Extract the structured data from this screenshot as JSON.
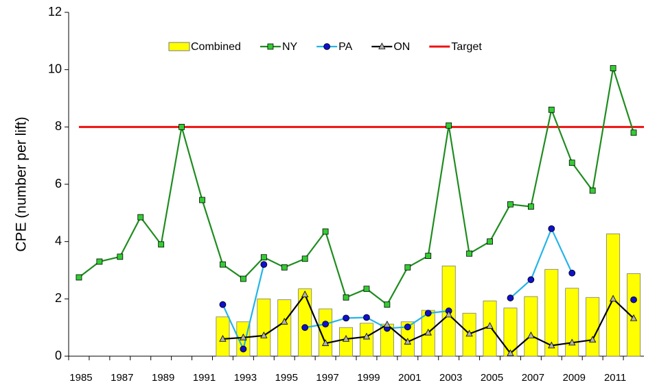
{
  "chart_data": {
    "type": "combo",
    "y_label": "CPE (number per lift)",
    "categories": [
      "1985",
      null,
      "1987",
      null,
      "1989",
      null,
      "1991",
      null,
      "1993",
      null,
      "1995",
      null,
      "1997",
      null,
      "1999",
      null,
      "2001",
      null,
      "2003",
      null,
      "2005",
      null,
      "2007",
      null,
      "2009",
      null,
      "2011",
      null
    ],
    "ylim": [
      0,
      12
    ],
    "yticks": [
      0,
      2,
      4,
      6,
      8,
      10,
      12
    ],
    "series": [
      {
        "name": "Combined",
        "kind": "bar",
        "color": "#ffff00",
        "values": [
          null,
          null,
          null,
          null,
          null,
          null,
          null,
          1.37,
          1.2,
          2.0,
          1.97,
          2.35,
          1.65,
          1.0,
          1.15,
          1.12,
          1.2,
          1.6,
          3.15,
          1.5,
          1.93,
          1.68,
          2.08,
          3.03,
          2.37,
          2.05,
          4.27,
          2.88
        ]
      },
      {
        "name": "NY",
        "kind": "line",
        "marker": "square",
        "color": "#1e8c1e",
        "marker_color": "#33cc33",
        "values": [
          2.75,
          3.3,
          3.47,
          4.85,
          3.9,
          8.0,
          5.45,
          3.2,
          2.7,
          3.45,
          3.1,
          3.4,
          4.35,
          2.05,
          2.35,
          1.8,
          3.1,
          3.5,
          8.05,
          3.58,
          4.0,
          5.3,
          5.22,
          8.6,
          6.75,
          5.78,
          10.05,
          7.8
        ]
      },
      {
        "name": "PA",
        "kind": "line",
        "marker": "circle",
        "color": "#22b4e8",
        "marker_color": "#1010cc",
        "values": [
          null,
          null,
          null,
          null,
          null,
          null,
          null,
          1.8,
          0.25,
          3.2,
          null,
          1.0,
          1.12,
          1.33,
          1.35,
          0.97,
          1.02,
          1.5,
          1.58,
          null,
          null,
          2.03,
          2.67,
          4.45,
          2.9,
          null,
          null,
          1.97
        ]
      },
      {
        "name": "ON",
        "kind": "line",
        "marker": "triangle",
        "color": "#000000",
        "marker_color": "#b0b0b0",
        "values": [
          null,
          null,
          null,
          null,
          null,
          null,
          null,
          0.6,
          0.65,
          0.72,
          1.2,
          2.15,
          0.45,
          0.6,
          0.68,
          1.1,
          0.5,
          0.82,
          1.45,
          0.78,
          1.05,
          0.1,
          0.72,
          0.37,
          0.47,
          0.57,
          2.0,
          1.32
        ]
      }
    ],
    "target": {
      "name": "Target",
      "value": 8,
      "color": "#ee1111"
    }
  }
}
